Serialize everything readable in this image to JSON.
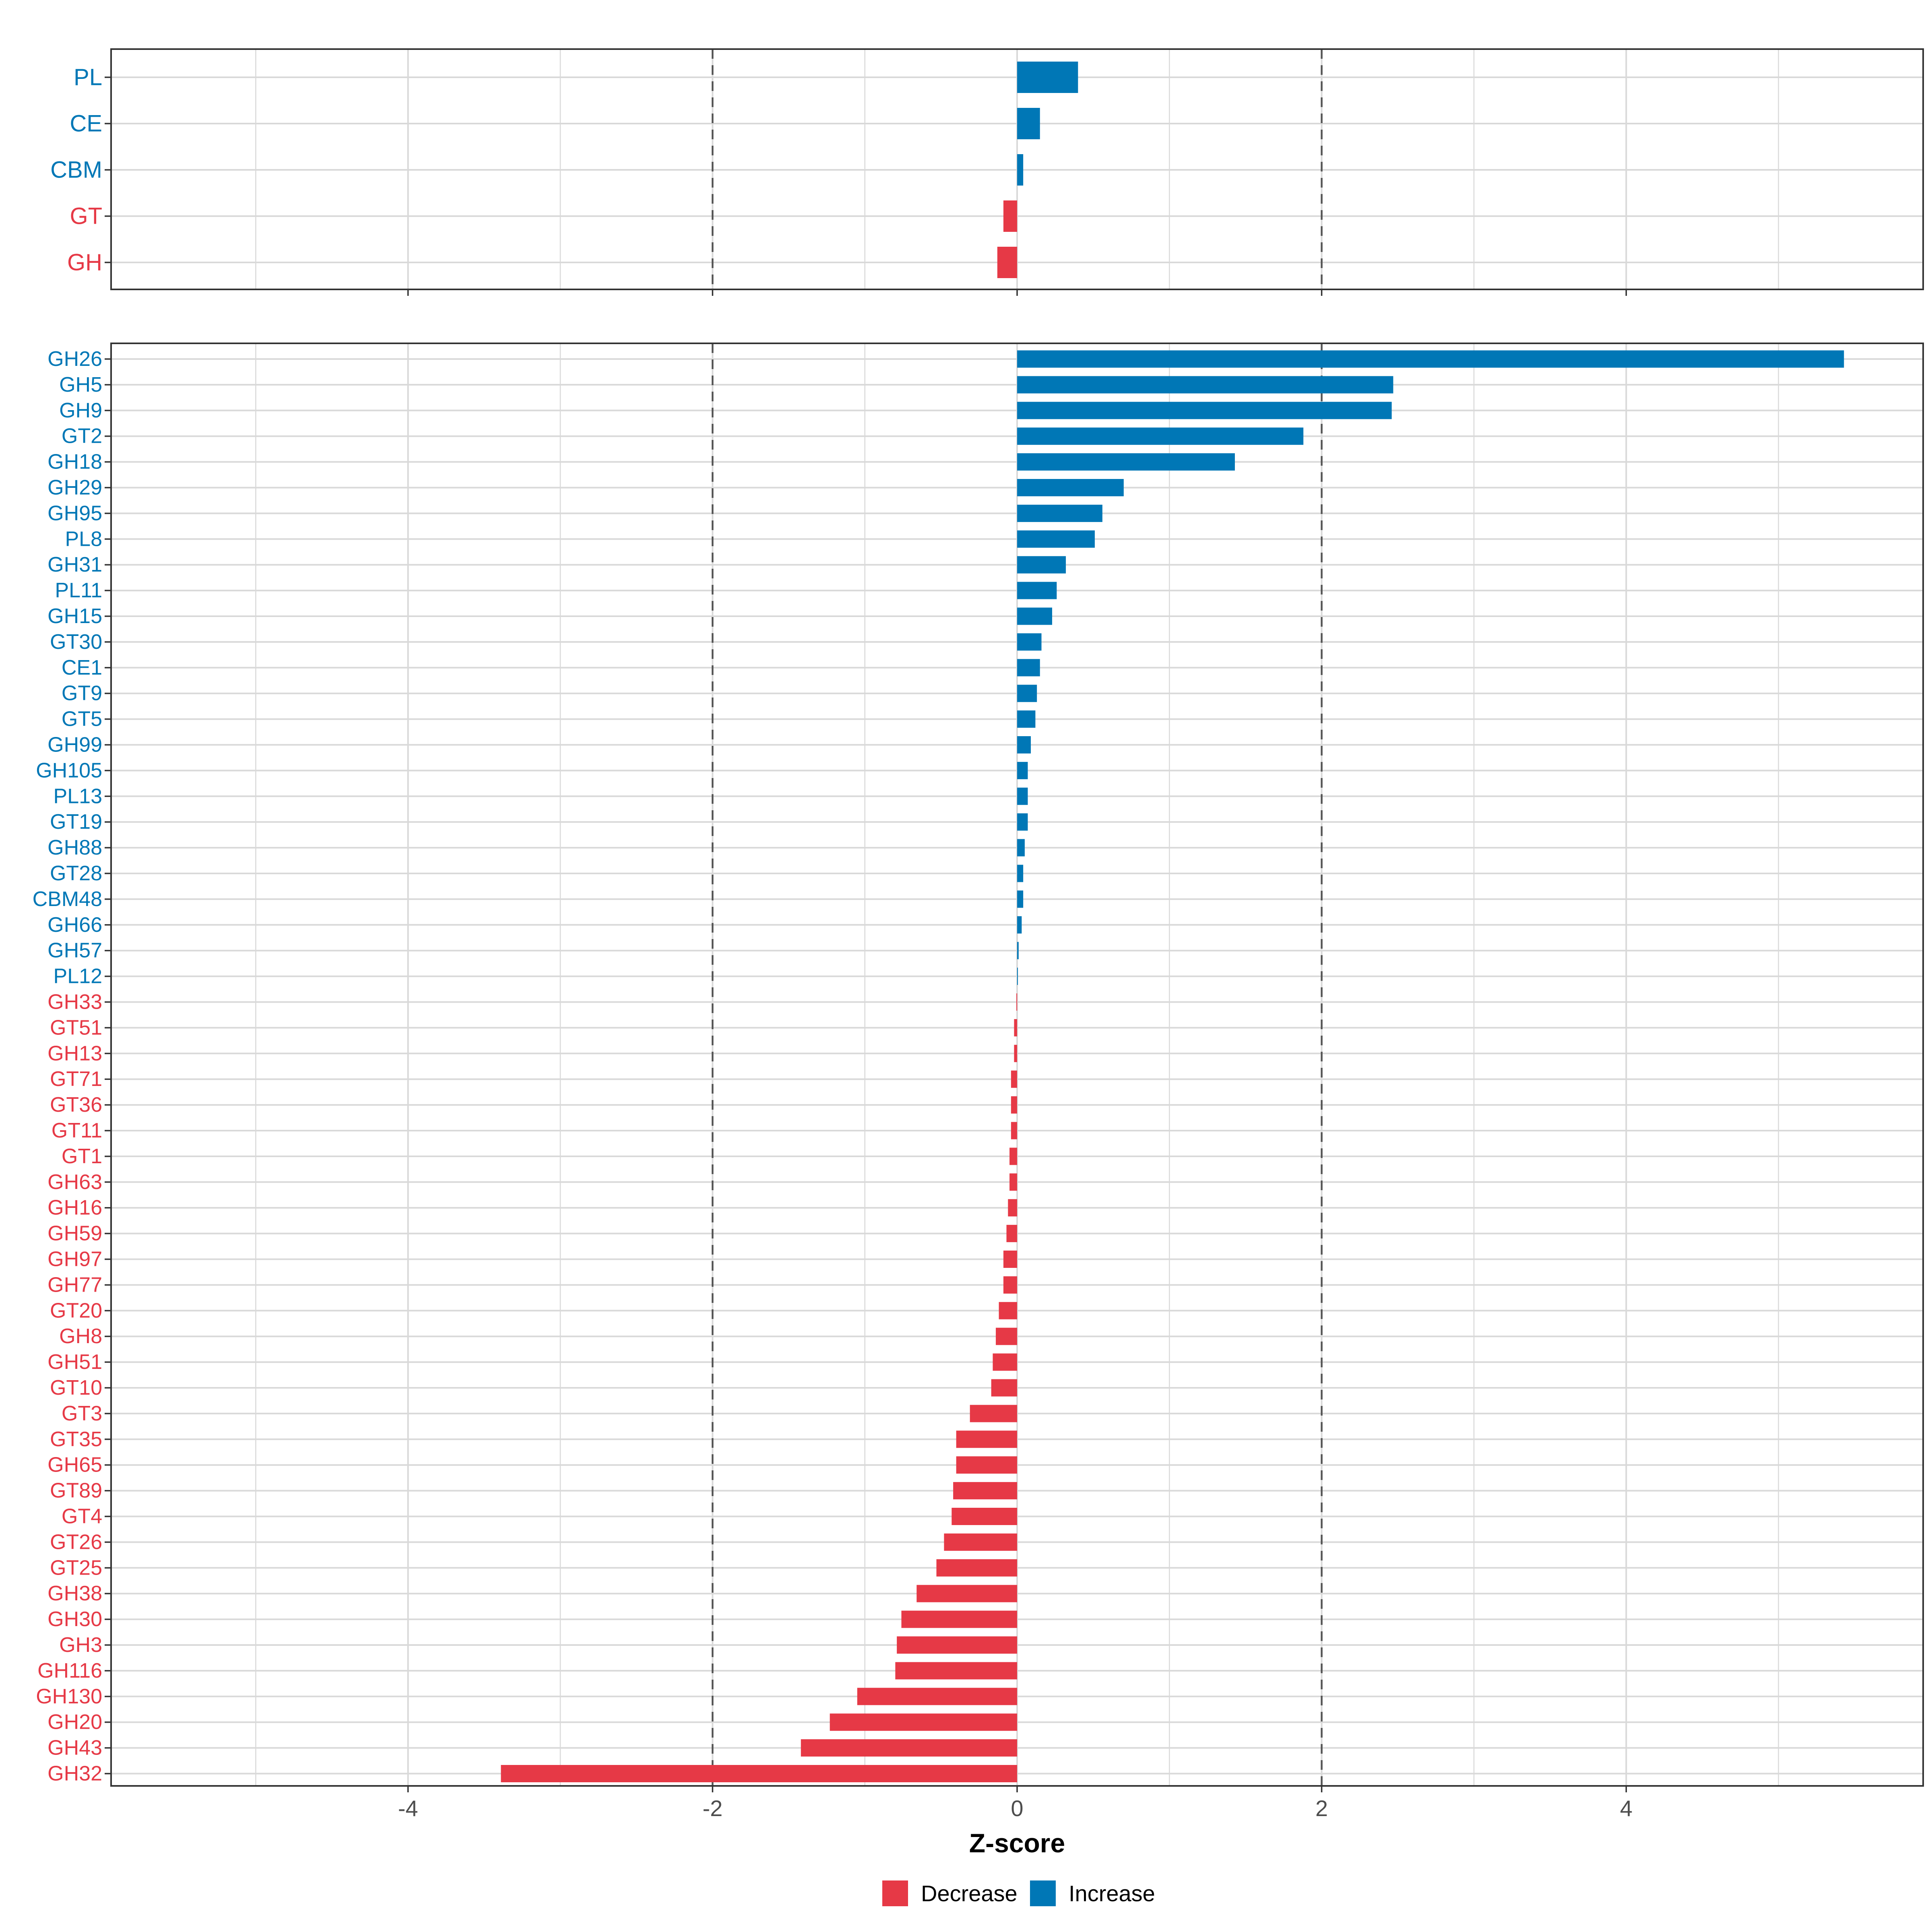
{
  "colors": {
    "decrease": "#E63946",
    "increase": "#0077B6",
    "grid": "#D9D9D9",
    "frame": "#333333",
    "threshold": "#555555",
    "tick_text": "#4D4D4D"
  },
  "chart_data": [
    {
      "type": "bar",
      "orientation": "horizontal",
      "panel": "top",
      "categories": [
        "PL",
        "CE",
        "CBM",
        "GT",
        "GH"
      ],
      "values": [
        0.4,
        0.15,
        0.04,
        -0.09,
        -0.13
      ],
      "xlim": [
        -5.95,
        5.95
      ],
      "grid": true,
      "thresholds": [
        -2,
        2
      ]
    },
    {
      "type": "bar",
      "orientation": "horizontal",
      "panel": "bottom",
      "categories": [
        "GH26",
        "GH5",
        "GH9",
        "GT2",
        "GH18",
        "GH29",
        "GH95",
        "PL8",
        "GH31",
        "PL11",
        "GH15",
        "GT30",
        "CE1",
        "GT9",
        "GT5",
        "GH99",
        "GH105",
        "PL13",
        "GT19",
        "GH88",
        "GT28",
        "CBM48",
        "GH66",
        "GH57",
        "PL12",
        "GH33",
        "GT51",
        "GH13",
        "GT71",
        "GT36",
        "GT11",
        "GT1",
        "GH63",
        "GH16",
        "GH59",
        "GH97",
        "GH77",
        "GT20",
        "GH8",
        "GH51",
        "GT10",
        "GT3",
        "GT35",
        "GH65",
        "GT89",
        "GT4",
        "GT26",
        "GT25",
        "GH38",
        "GH30",
        "GH3",
        "GH116",
        "GH130",
        "GH20",
        "GH43",
        "GH32"
      ],
      "values": [
        5.43,
        2.47,
        2.46,
        1.88,
        1.43,
        0.7,
        0.56,
        0.51,
        0.32,
        0.26,
        0.23,
        0.16,
        0.15,
        0.13,
        0.12,
        0.09,
        0.07,
        0.07,
        0.07,
        0.05,
        0.04,
        0.04,
        0.03,
        0.01,
        0.005,
        -0.005,
        -0.02,
        -0.02,
        -0.04,
        -0.04,
        -0.04,
        -0.05,
        -0.05,
        -0.06,
        -0.07,
        -0.09,
        -0.09,
        -0.12,
        -0.14,
        -0.16,
        -0.17,
        -0.31,
        -0.4,
        -0.4,
        -0.42,
        -0.43,
        -0.48,
        -0.53,
        -0.66,
        -0.76,
        -0.79,
        -0.8,
        -1.05,
        -1.23,
        -1.42,
        -3.39
      ],
      "xlim": [
        -5.95,
        5.95
      ],
      "xticks": [
        -4,
        -2,
        0,
        2,
        4
      ],
      "xtick_labels": [
        "-4",
        "-2",
        "0",
        "2",
        "4"
      ],
      "xlabel": "Z-score",
      "grid": true,
      "thresholds": [
        -2,
        2
      ]
    }
  ],
  "legend": {
    "position": "bottom",
    "items": [
      {
        "label": "Decrease",
        "key": "decrease"
      },
      {
        "label": "Increase",
        "key": "increase"
      }
    ]
  }
}
